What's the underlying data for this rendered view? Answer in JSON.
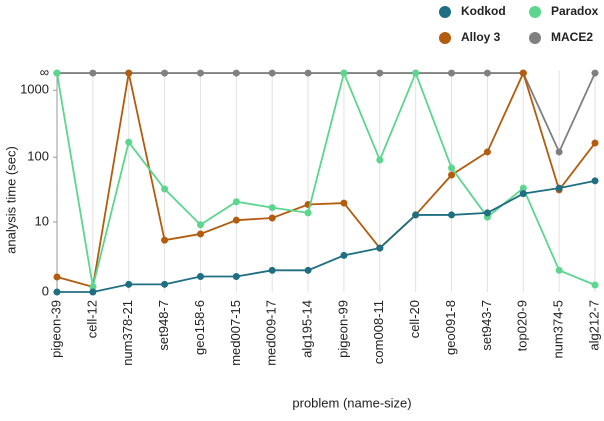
{
  "chart_data": {
    "type": "line",
    "y_label": "analysis time (sec)",
    "x_label": "problem (name-size)",
    "categories": [
      "pigeon-39",
      "cell-12",
      "num378-21",
      "set948-7",
      "geo158-6",
      "med007-15",
      "med009-17",
      "alg195-14",
      "pigeon-99",
      "com008-11",
      "cell-20",
      "geo091-8",
      "set943-7",
      "top020-9",
      "num374-5",
      "alg212-7"
    ],
    "yscale": "log1p",
    "ylim": [
      0,
      2000
    ],
    "yticks": [
      0,
      10,
      100,
      1000,
      {
        "value": 1800,
        "label": "∞"
      }
    ],
    "grid": "x",
    "legend": "top-right",
    "series": [
      {
        "name": "Kodkod",
        "color": "#1f6e82",
        "values": [
          0,
          0,
          0.3,
          0.3,
          0.7,
          0.7,
          1.1,
          1.1,
          2.5,
          3.5,
          13,
          13,
          14,
          28,
          34,
          44
        ]
      },
      {
        "name": "Paradox",
        "color": "#5cd68e",
        "values": [
          1800,
          0.2,
          168,
          33,
          9,
          21,
          17,
          14,
          1800,
          91,
          1800,
          69,
          12,
          34,
          1.1,
          0.27
        ]
      },
      {
        "name": "Alloy 3",
        "color": "#b35c0e",
        "values": [
          0.67,
          0.19,
          1800,
          4.9,
          6.3,
          10.7,
          11.6,
          19,
          20,
          3.5,
          13,
          54,
          120,
          1800,
          32,
          163
        ]
      },
      {
        "name": "MACE2",
        "color": "#808080",
        "values": [
          1800,
          1800,
          1800,
          1800,
          1800,
          1800,
          1800,
          1800,
          1800,
          1800,
          1800,
          1800,
          1800,
          1800,
          120,
          1800
        ]
      }
    ]
  }
}
